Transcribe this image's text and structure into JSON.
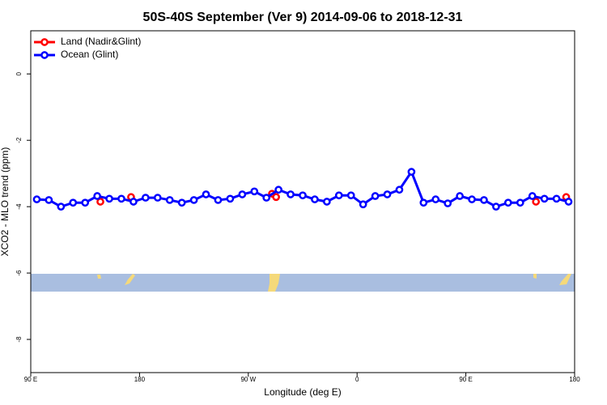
{
  "chart_data": {
    "type": "line",
    "title": "50S-40S September (Ver 9)   2014-09-06 to 2018-12-31",
    "x_label": "Longitude (deg E)",
    "y_label": "XCO2 - MLO trend (ppm)",
    "xlim": [
      90,
      540
    ],
    "xticks": [
      {
        "value": 90,
        "label": "90 E"
      },
      {
        "value": 180,
        "label": "180"
      },
      {
        "value": 270,
        "label": "90 W"
      },
      {
        "value": 360,
        "label": "0"
      },
      {
        "value": 450,
        "label": "90 E"
      },
      {
        "value": 540,
        "label": "180"
      }
    ],
    "ylim": [
      -9.0,
      1.3
    ],
    "yticks": [
      0,
      -2,
      -4,
      -6,
      -8
    ],
    "legend_position": "top-left",
    "series": [
      {
        "name": "Land (Nadir&Glint)",
        "color": "#ff0000",
        "connect": false,
        "x": [
          147.6,
          173,
          289.6,
          293,
          508,
          533
        ],
        "values": [
          -3.85,
          -3.71,
          -3.61,
          -3.71,
          -3.85,
          -3.71
        ]
      },
      {
        "name": "Ocean (Glint)",
        "color": "#0000ff",
        "connect": true,
        "x": [
          95,
          105,
          115,
          125,
          135,
          145,
          155,
          165,
          175,
          185,
          195,
          205,
          215,
          225,
          235,
          245,
          255,
          265,
          275,
          285,
          295,
          305,
          315,
          325,
          335,
          345,
          355,
          365,
          375,
          385,
          395,
          405,
          415,
          425,
          435,
          445,
          455,
          465,
          475,
          485,
          495,
          505,
          515,
          525,
          535
        ],
        "values": [
          -3.78,
          -3.8,
          -4.0,
          -3.88,
          -3.88,
          -3.68,
          -3.76,
          -3.76,
          -3.85,
          -3.73,
          -3.73,
          -3.8,
          -3.88,
          -3.8,
          -3.63,
          -3.8,
          -3.76,
          -3.63,
          -3.54,
          -3.73,
          -3.49,
          -3.63,
          -3.66,
          -3.78,
          -3.85,
          -3.66,
          -3.66,
          -3.93,
          -3.68,
          -3.63,
          -3.49,
          -2.95,
          -3.88,
          -3.78,
          -3.9,
          -3.68,
          -3.78,
          -3.8,
          -4.0,
          -3.88,
          -3.88,
          -3.68,
          -3.76,
          -3.76,
          -3.85
        ]
      }
    ]
  }
}
